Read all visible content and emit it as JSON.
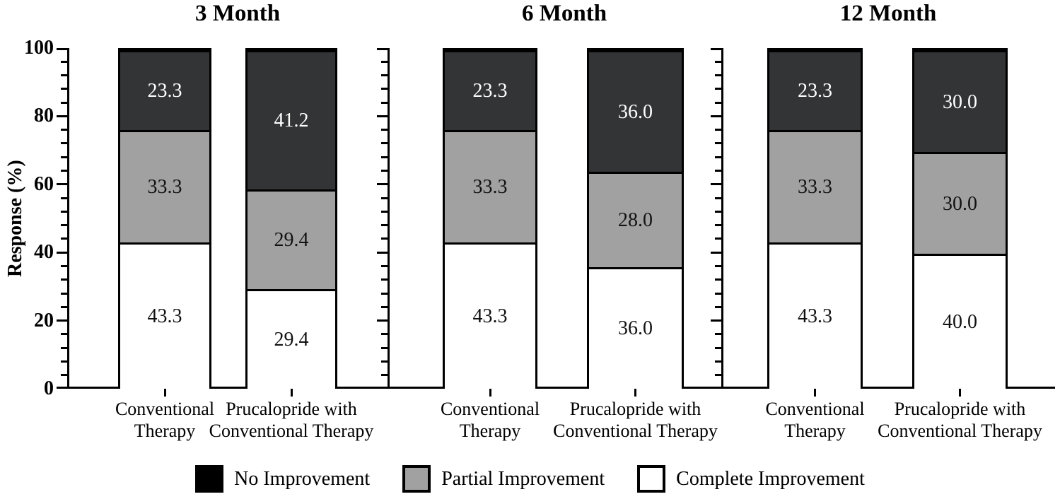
{
  "chart_data": {
    "type": "bar",
    "variant": "stacked-percent",
    "ylabel": "Response (%)",
    "ylim": [
      0,
      100
    ],
    "ytick_labels": [
      "0",
      "20",
      "40",
      "60",
      "80",
      "100"
    ],
    "y_minor_step": 4,
    "grid": false,
    "legend_position": "bottom",
    "segment_order": [
      "no",
      "partial",
      "complete"
    ],
    "segment_colors": {
      "no": "#323435",
      "partial": "#a1a1a1",
      "complete": "#ffffff"
    },
    "legend": [
      {
        "key": "no",
        "label": "No Improvement",
        "color": "#000000"
      },
      {
        "key": "partial",
        "label": "Partial Improvement",
        "color": "#a1a1a1"
      },
      {
        "key": "complete",
        "label": "Complete Improvement",
        "color": "#ffffff"
      }
    ],
    "panels": [
      {
        "title": "3 Month",
        "bars": [
          {
            "category_lines": [
              "Conventional",
              "Therapy"
            ],
            "values": {
              "complete": 43.3,
              "partial": 33.3,
              "no": 23.3
            }
          },
          {
            "category_lines": [
              "Prucalopride with",
              "Conventional Therapy"
            ],
            "values": {
              "complete": 29.4,
              "partial": 29.4,
              "no": 41.2
            }
          }
        ]
      },
      {
        "title": "6 Month",
        "bars": [
          {
            "category_lines": [
              "Conventional",
              "Therapy"
            ],
            "values": {
              "complete": 43.3,
              "partial": 33.3,
              "no": 23.3
            }
          },
          {
            "category_lines": [
              "Prucalopride with",
              "Conventional Therapy"
            ],
            "values": {
              "complete": 36.0,
              "partial": 28.0,
              "no": 36.0
            }
          }
        ]
      },
      {
        "title": "12 Month",
        "bars": [
          {
            "category_lines": [
              "Conventional",
              "Therapy"
            ],
            "values": {
              "complete": 43.3,
              "partial": 33.3,
              "no": 23.3
            }
          },
          {
            "category_lines": [
              "Prucalopride with",
              "Conventional Therapy"
            ],
            "values": {
              "complete": 40.0,
              "partial": 30.0,
              "no": 30.0
            }
          }
        ]
      }
    ]
  }
}
